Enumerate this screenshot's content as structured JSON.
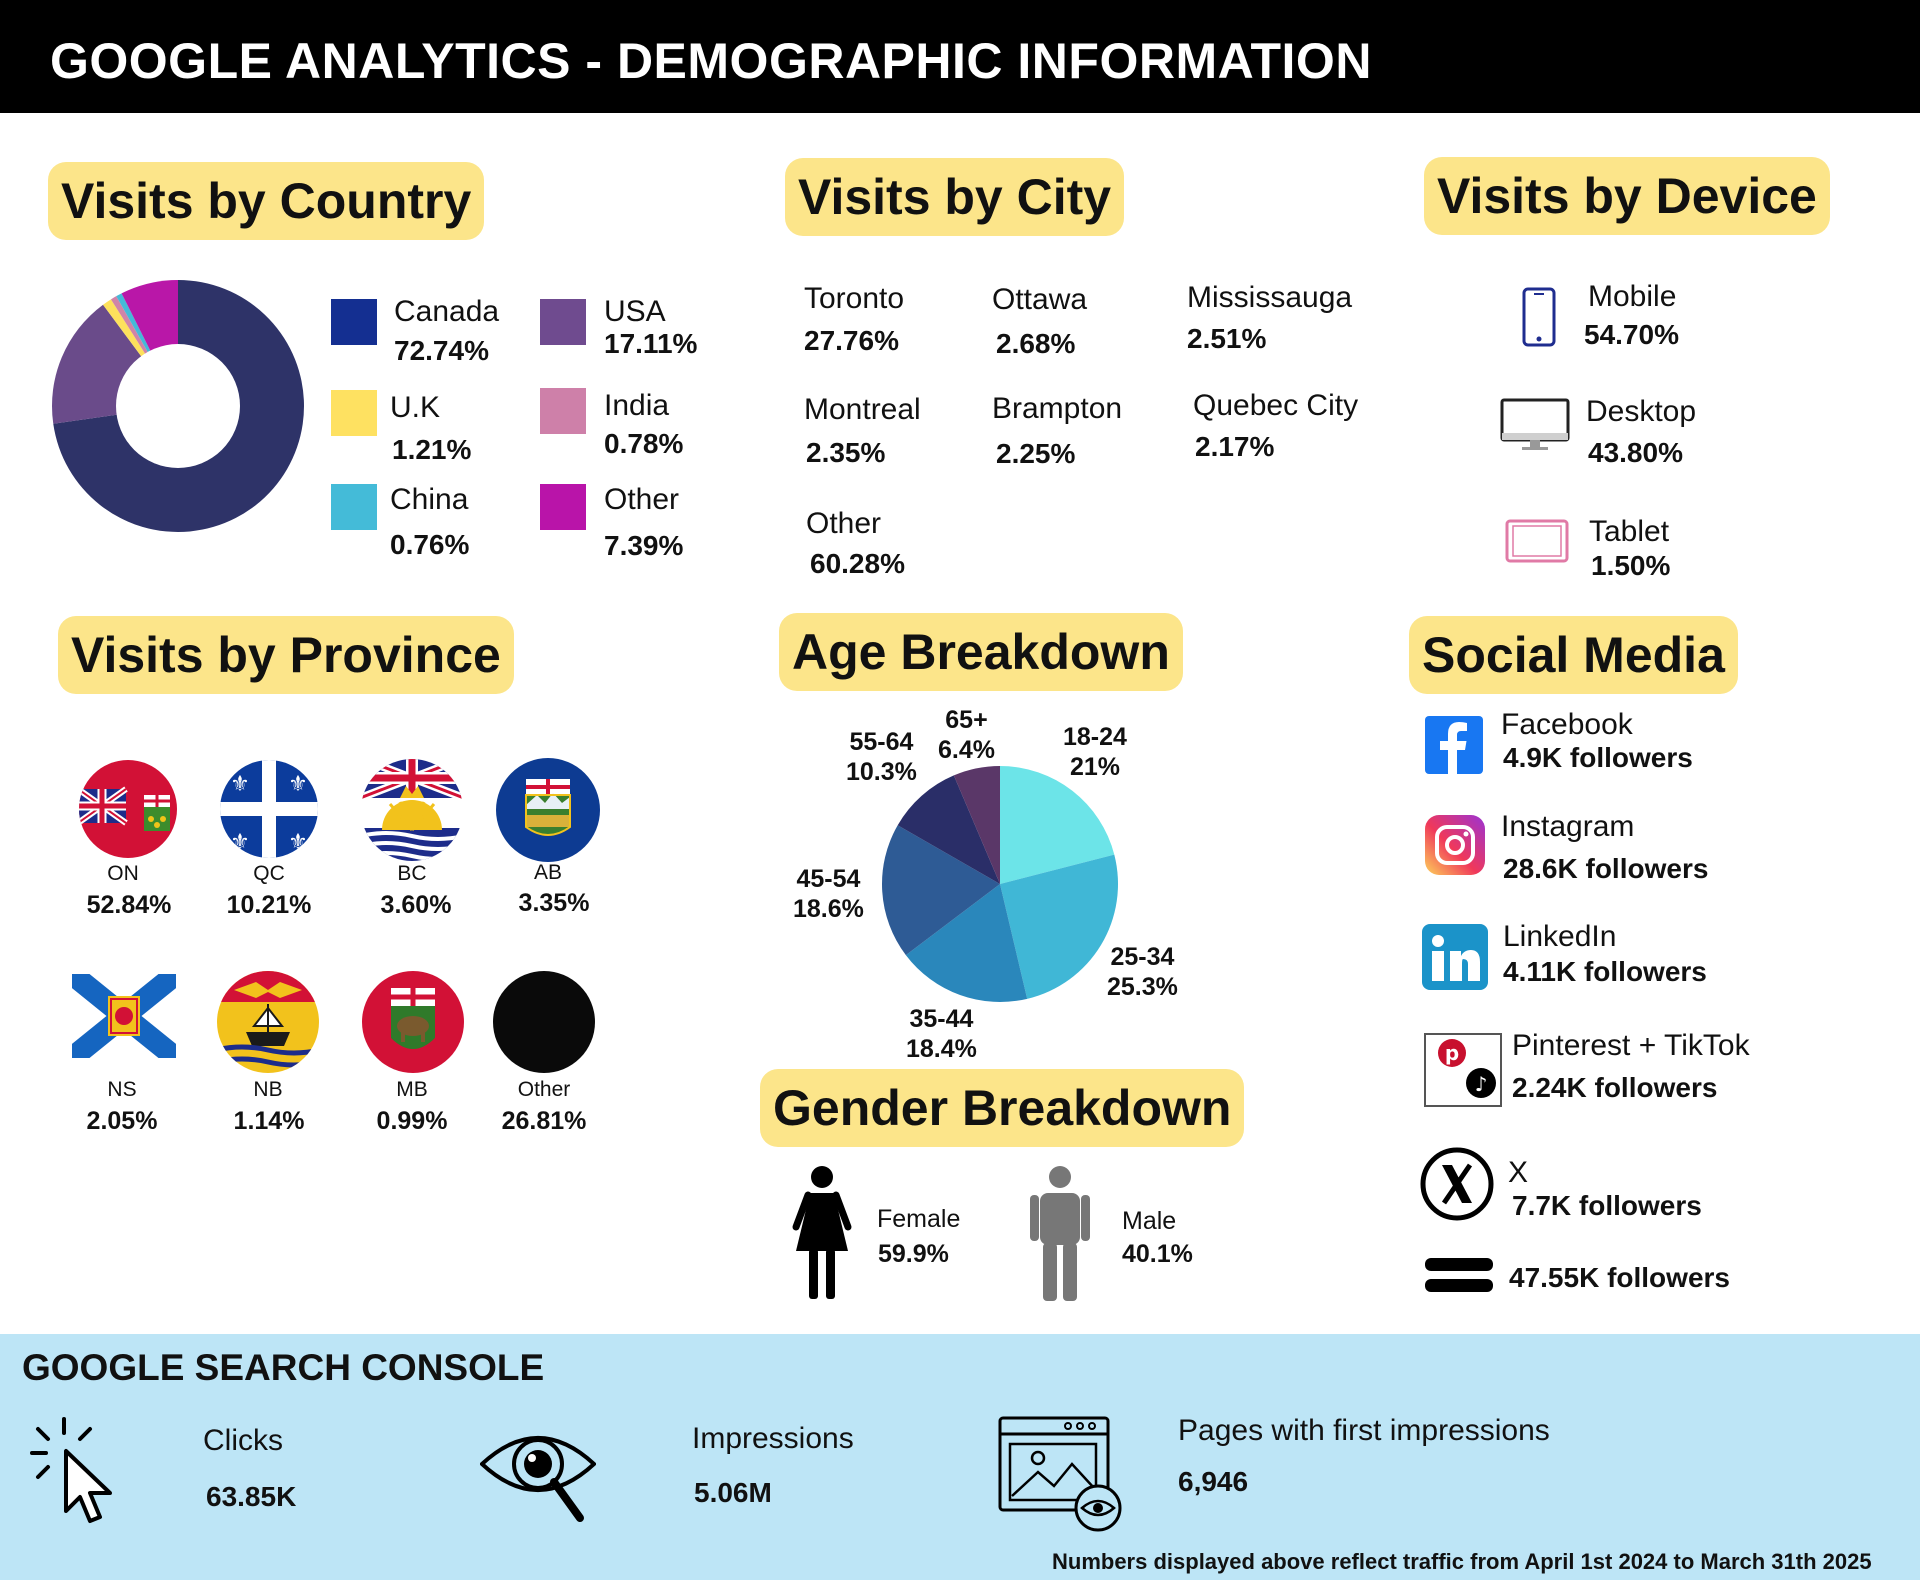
{
  "header": {
    "title": "GOOGLE ANALYTICS - DEMOGRAPHIC INFORMATION"
  },
  "sections": {
    "country": "Visits by Country",
    "city": "Visits by City",
    "device": "Visits by Device",
    "province": "Visits by Province",
    "age": "Age Breakdown",
    "gender": "Gender Breakdown",
    "social": "Social Media"
  },
  "chart_data": [
    {
      "type": "pie",
      "title": "Visits by Country",
      "categories": [
        "Canada",
        "USA",
        "U.K",
        "India",
        "China",
        "Other"
      ],
      "values": [
        72.74,
        17.11,
        1.21,
        0.78,
        0.76,
        7.39
      ],
      "labels": [
        "72.74%",
        "17.11%",
        "1.21%",
        "0.78%",
        "0.76%",
        "7.39%"
      ],
      "colors": [
        "#2e3368",
        "#6a4b8a",
        "#fde15c",
        "#d084a8",
        "#45b9d8",
        "#b917a8"
      ],
      "legend_colors": [
        "#142f91",
        "#6f4b8f",
        "#fee161",
        "#ce80a9",
        "#44bbd8",
        "#b914a9"
      ],
      "legend": "right"
    },
    {
      "type": "pie",
      "title": "Age Breakdown",
      "categories": [
        "18-24",
        "25-34",
        "35-44",
        "45-54",
        "55-64",
        "65+"
      ],
      "values": [
        21,
        25.3,
        18.4,
        18.6,
        10.3,
        6.4
      ],
      "labels": [
        "21%",
        "25.3%",
        "18.4%",
        "18.6%",
        "10.3%",
        "6.4%"
      ],
      "colors": [
        "#6ce4e8",
        "#40b7d6",
        "#2a87bb",
        "#2e5b95",
        "#2a2e68",
        "#5a3768"
      ]
    }
  ],
  "cities": [
    {
      "name": "Toronto",
      "value": "27.76%"
    },
    {
      "name": "Ottawa",
      "value": "2.68%"
    },
    {
      "name": "Mississauga",
      "value": "2.51%"
    },
    {
      "name": "Montreal",
      "value": "2.35%"
    },
    {
      "name": "Brampton",
      "value": "2.25%"
    },
    {
      "name": "Quebec City",
      "value": "2.17%"
    },
    {
      "name": "Other",
      "value": "60.28%"
    }
  ],
  "devices": [
    {
      "name": "Mobile",
      "value": "54.70%",
      "icon": "mobile-phone-icon"
    },
    {
      "name": "Desktop",
      "value": "43.80%",
      "icon": "desktop-monitor-icon"
    },
    {
      "name": "Tablet",
      "value": "1.50%",
      "icon": "tablet-icon"
    }
  ],
  "provinces": [
    {
      "code": "ON",
      "value": "52.84%",
      "icon": "ontario-flag-icon"
    },
    {
      "code": "QC",
      "value": "10.21%",
      "icon": "quebec-flag-icon"
    },
    {
      "code": "BC",
      "value": "3.60%",
      "icon": "british-columbia-flag-icon"
    },
    {
      "code": "AB",
      "value": "3.35%",
      "icon": "alberta-flag-icon"
    },
    {
      "code": "NS",
      "value": "2.05%",
      "icon": "nova-scotia-flag-icon"
    },
    {
      "code": "NB",
      "value": "1.14%",
      "icon": "new-brunswick-flag-icon"
    },
    {
      "code": "MB",
      "value": "0.99%",
      "icon": "manitoba-flag-icon"
    },
    {
      "code": "Other",
      "value": "26.81%",
      "icon": "black-circle-icon"
    }
  ],
  "gender": [
    {
      "name": "Female",
      "value": "59.9%",
      "icon": "female-figure-icon"
    },
    {
      "name": "Male",
      "value": "40.1%",
      "icon": "male-figure-icon"
    }
  ],
  "social": [
    {
      "name": "Facebook",
      "value": "4.9K followers",
      "icon": "facebook-icon"
    },
    {
      "name": "Instagram",
      "value": "28.6K followers",
      "icon": "instagram-icon"
    },
    {
      "name": "LinkedIn",
      "value": "4.11K followers",
      "icon": "linkedin-icon"
    },
    {
      "name": "Pinterest + TikTok",
      "value": "2.24K followers",
      "icon": "pinterest-tiktok-icon"
    },
    {
      "name": "X",
      "value": "7.7K followers",
      "icon": "x-icon"
    },
    {
      "name": "",
      "value": "47.55K followers",
      "icon": "equals-bars-icon"
    }
  ],
  "search_console": {
    "title": "GOOGLE SEARCH CONSOLE",
    "items": [
      {
        "label": "Clicks",
        "value": "63.85K",
        "icon": "cursor-click-icon"
      },
      {
        "label": "Impressions",
        "value": "5.06M",
        "icon": "eye-magnifier-icon"
      },
      {
        "label": "Pages with first impressions",
        "value": "6,946",
        "icon": "webpage-eye-icon"
      }
    ],
    "footnote": "Numbers displayed above reflect traffic from April 1st 2024 to March 31th 2025"
  }
}
